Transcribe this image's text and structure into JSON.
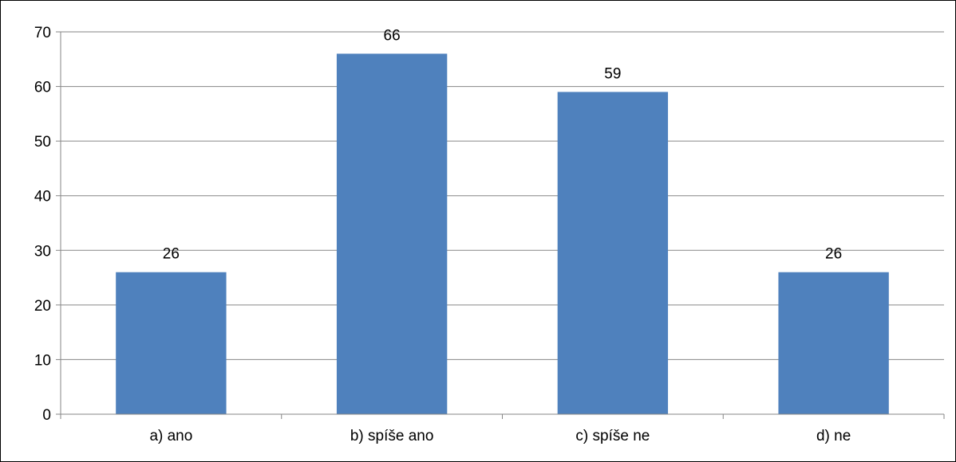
{
  "chart_data": {
    "type": "bar",
    "categories": [
      "a) ano",
      "b) spíše ano",
      "c) spíše ne",
      "d) ne"
    ],
    "values": [
      26,
      66,
      59,
      26
    ],
    "title": "",
    "xlabel": "",
    "ylabel": "",
    "ylim": [
      0,
      70
    ],
    "yticks": [
      0,
      10,
      20,
      30,
      40,
      50,
      60,
      70
    ],
    "grid": true,
    "legend": "none",
    "data_labels": true,
    "colors": {
      "bar": "#4F81BD",
      "grid": "#868686",
      "axis": "#868686",
      "text": "#000000"
    }
  }
}
